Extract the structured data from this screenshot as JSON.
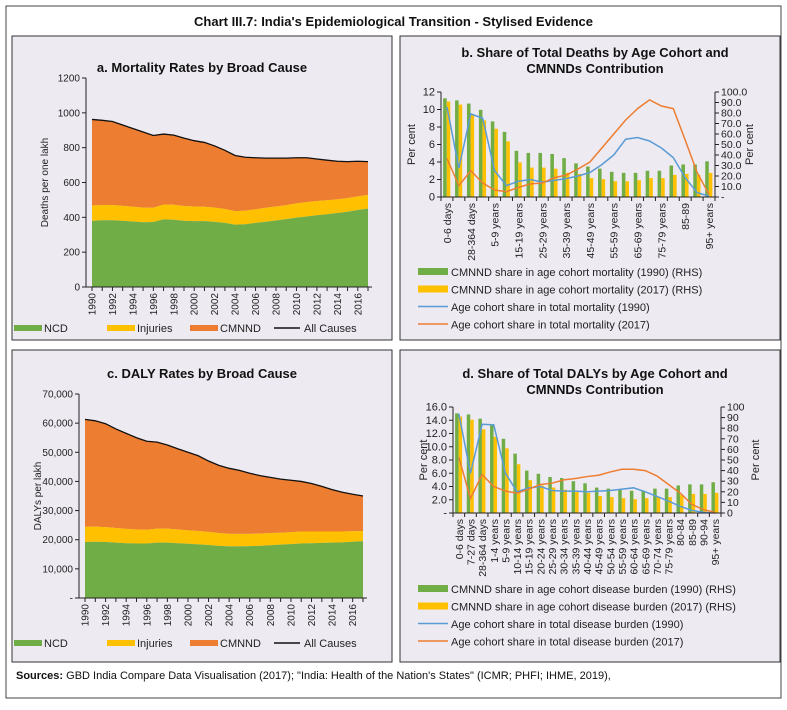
{
  "title": "Chart III.7: India's Epidemiological Transition - Stylised Evidence",
  "sources_label": "Sources:",
  "sources_text": "GBD India Compare Data Visualisation (2017); \"India: Health of the Nation's States\" (ICMR; PHFI; IHME, 2019),",
  "colors": {
    "ncd": "#70ad47",
    "injuries": "#ffc000",
    "cmnnd": "#ed7d31",
    "all": "#111111",
    "blue": "#5b9bd5",
    "panel_bg": "#edeaf1"
  },
  "chart_data": [
    {
      "type": "area",
      "title": "a. Mortality Rates by Broad Cause",
      "ylabel": "Deaths per one lakh",
      "ylim": [
        0,
        1200
      ],
      "yticks": [
        "0",
        "200",
        "400",
        "600",
        "800",
        "1000",
        "1200"
      ],
      "x": [
        1990,
        1991,
        1992,
        1993,
        1994,
        1995,
        1996,
        1997,
        1998,
        1999,
        2000,
        2001,
        2002,
        2003,
        2004,
        2005,
        2006,
        2007,
        2008,
        2009,
        2010,
        2011,
        2012,
        2013,
        2014,
        2015,
        2016,
        2017
      ],
      "xtick_labels": [
        "1990",
        "1992",
        "1994",
        "1996",
        "1998",
        "2000",
        "2002",
        "2004",
        "2006",
        "2008",
        "2010",
        "2012",
        "2014",
        "2016"
      ],
      "legend": [
        "NCD",
        "Injuries",
        "CMNND",
        "All Causes"
      ],
      "series": [
        {
          "name": "NCD",
          "values": [
            380,
            383,
            383,
            380,
            376,
            372,
            373,
            388,
            386,
            380,
            378,
            378,
            374,
            368,
            358,
            360,
            368,
            375,
            382,
            390,
            398,
            405,
            412,
            418,
            425,
            432,
            442,
            450
          ]
        },
        {
          "name": "Injuries",
          "values": [
            88,
            88,
            88,
            86,
            85,
            84,
            82,
            86,
            86,
            85,
            84,
            83,
            82,
            80,
            78,
            78,
            78,
            80,
            80,
            80,
            82,
            82,
            82,
            80,
            78,
            78,
            78,
            78
          ]
        },
        {
          "name": "All Causes",
          "values": [
            962,
            957,
            950,
            930,
            910,
            890,
            870,
            878,
            872,
            855,
            840,
            830,
            810,
            785,
            755,
            745,
            742,
            740,
            740,
            740,
            742,
            742,
            735,
            728,
            722,
            720,
            722,
            720
          ]
        }
      ]
    },
    {
      "type": "bar+line",
      "title": "b. Share of Total Deaths by Age Cohort and CMNNDs Contribution",
      "ylabel": "Per cent",
      "y2label": "Per cent",
      "ylim": [
        0,
        12
      ],
      "y2lim": [
        0,
        100
      ],
      "yticks": [
        "0",
        "2",
        "4",
        "6",
        "8",
        "10",
        "12"
      ],
      "y2ticks": [
        "-",
        "10.0",
        "20.0",
        "30.0",
        "40.0",
        "50.0",
        "60.0",
        "70.0",
        "80.0",
        "90.0",
        "100.0"
      ],
      "categories": [
        "0-6 days",
        "7-27 days",
        "28-364 days",
        "1-4 years",
        "5-9 years",
        "10-14 years",
        "15-19 years",
        "20-24 years",
        "25-29 years",
        "30-34 years",
        "35-39 years",
        "40-44 years",
        "45-49 years",
        "50-54 years",
        "55-59 years",
        "60-64 years",
        "65-69 years",
        "70-74 years",
        "75-79 years",
        "80-84",
        "85-89",
        "90-94",
        "95+ years"
      ],
      "shown_labels": [
        0,
        2,
        4,
        6,
        8,
        10,
        12,
        14,
        16,
        18,
        20,
        22
      ],
      "series": [
        {
          "name": "CMNND share in age cohort mortality (1990) (RHS)",
          "kind": "bar",
          "axis": "right",
          "values": [
            94,
            92,
            89,
            83,
            72,
            62,
            44,
            42,
            42,
            41,
            37,
            32,
            29,
            27,
            24,
            23,
            23,
            25,
            25,
            30,
            31,
            31,
            34
          ]
        },
        {
          "name": "CMNND share in age cohort mortality (2017) (RHS)",
          "kind": "bar",
          "axis": "right",
          "values": [
            91,
            88,
            79,
            73,
            65,
            53,
            33,
            28,
            28,
            27,
            23,
            22,
            18,
            17,
            15,
            15,
            16,
            18,
            18,
            21,
            22,
            21,
            23
          ]
        },
        {
          "name": "Age cohort share in total mortality (1990)",
          "kind": "line",
          "axis": "left",
          "values": [
            10.3,
            3.3,
            9.5,
            9.0,
            3.0,
            1.3,
            1.8,
            2.0,
            1.7,
            1.9,
            2.1,
            2.4,
            2.8,
            3.7,
            4.8,
            6.6,
            6.8,
            6.4,
            5.6,
            4.5,
            2.2,
            0.5,
            0.1
          ]
        },
        {
          "name": "Age cohort share in total mortality (2017)",
          "kind": "line",
          "axis": "left",
          "values": [
            4.4,
            1.3,
            3.0,
            1.6,
            0.8,
            0.6,
            1.1,
            1.5,
            1.6,
            2.2,
            2.5,
            3.2,
            4.0,
            5.6,
            7.2,
            8.8,
            10.1,
            11.1,
            10.4,
            10.1,
            6.5,
            2.8,
            0.3
          ]
        }
      ]
    },
    {
      "type": "area",
      "title": "c. DALY Rates by Broad Cause",
      "ylabel": "DALYs per lakh",
      "ylim": [
        0,
        70000
      ],
      "yticks": [
        "-",
        "10,000",
        "20,000",
        "30,000",
        "40,000",
        "50,000",
        "60,000",
        "70,000"
      ],
      "x": [
        1990,
        1991,
        1992,
        1993,
        1994,
        1995,
        1996,
        1997,
        1998,
        1999,
        2000,
        2001,
        2002,
        2003,
        2004,
        2005,
        2006,
        2007,
        2008,
        2009,
        2010,
        2011,
        2012,
        2013,
        2014,
        2015,
        2016,
        2017
      ],
      "xtick_labels": [
        "1990",
        "1992",
        "1994",
        "1996",
        "1998",
        "2000",
        "2002",
        "2004",
        "2006",
        "2008",
        "2010",
        "2012",
        "2014",
        "2016"
      ],
      "legend": [
        "NCD",
        "Injuries",
        "CMNND",
        "All Causes"
      ],
      "series": [
        {
          "name": "NCD",
          "values": [
            19200,
            19300,
            19200,
            19000,
            18800,
            18700,
            18700,
            19000,
            19000,
            18800,
            18600,
            18400,
            18200,
            17900,
            17700,
            17700,
            17800,
            17900,
            18100,
            18300,
            18500,
            18700,
            18800,
            18900,
            19000,
            19100,
            19300,
            19500
          ]
        },
        {
          "name": "Injuries",
          "values": [
            5200,
            5200,
            5100,
            5000,
            4900,
            4800,
            4700,
            4800,
            4800,
            4700,
            4600,
            4600,
            4500,
            4400,
            4300,
            4300,
            4200,
            4200,
            4200,
            4100,
            4100,
            4100,
            4000,
            3900,
            3800,
            3700,
            3600,
            3500
          ]
        },
        {
          "name": "All Causes",
          "values": [
            61300,
            60800,
            59800,
            58000,
            56500,
            55000,
            53800,
            53500,
            52500,
            51200,
            50000,
            48800,
            47000,
            45500,
            44500,
            43800,
            42800,
            42000,
            41400,
            40800,
            40400,
            40000,
            39300,
            38300,
            37200,
            36300,
            35600,
            35000
          ]
        }
      ]
    },
    {
      "type": "bar+line",
      "title": "d. Share of Total DALYs by Age Cohort and CMNNDs Contribution",
      "ylabel": "Per cent",
      "y2label": "Per cent",
      "ylim": [
        0,
        16
      ],
      "y2lim": [
        0,
        100
      ],
      "yticks": [
        "-",
        "2.0",
        "4.0",
        "6.0",
        "8.0",
        "10.0",
        "12.0",
        "14.0",
        "16.0"
      ],
      "y2ticks": [
        "0",
        "10",
        "20",
        "30",
        "40",
        "50",
        "60",
        "70",
        "80",
        "90",
        "100"
      ],
      "categories": [
        "0-6 days",
        "7-27 days",
        "28-364 days",
        "1-4 years",
        "5-9 years",
        "10-14 years",
        "15-19 years",
        "20-24 years",
        "25-29 years",
        "30-34 years",
        "35-39 years",
        "40-44 years",
        "45-49 years",
        "50-54 years",
        "55-59 years",
        "60-64 years",
        "65-69 years",
        "70-74 years",
        "75-79 years",
        "80-84",
        "85-89",
        "90-94",
        "95+ years"
      ],
      "shown_labels": [
        0,
        1,
        2,
        3,
        4,
        5,
        6,
        7,
        8,
        9,
        10,
        11,
        12,
        13,
        14,
        15,
        16,
        17,
        18,
        19,
        20,
        21,
        22
      ],
      "series": [
        {
          "name": "CMNND share in age cohort disease burden (1990) (RHS)",
          "kind": "bar",
          "axis": "right",
          "values": [
            94,
            93,
            89,
            83,
            70,
            56,
            40,
            37,
            34,
            33,
            30,
            28,
            24,
            23,
            22,
            21,
            21,
            23,
            23,
            26,
            27,
            27,
            29
          ]
        },
        {
          "name": "CMNND share in age cohort disease burden (2017) (RHS)",
          "kind": "bar",
          "axis": "right",
          "values": [
            91,
            88,
            79,
            72,
            61,
            46,
            31,
            26,
            24,
            22,
            20,
            19,
            16,
            15,
            14,
            13,
            14,
            15,
            15,
            17,
            18,
            18,
            19
          ]
        },
        {
          "name": "Age cohort share in total disease burden (1990)",
          "kind": "line",
          "axis": "left",
          "values": [
            15.0,
            6.0,
            13.4,
            13.3,
            6.0,
            3.2,
            3.8,
            4.0,
            3.4,
            3.3,
            3.3,
            3.2,
            3.3,
            3.4,
            3.6,
            3.8,
            3.2,
            2.5,
            1.8,
            1.0,
            0.4,
            0.1,
            0.0
          ]
        },
        {
          "name": "Age cohort share in total disease burden (2017)",
          "kind": "line",
          "axis": "left",
          "values": [
            8.4,
            2.2,
            5.8,
            4.0,
            3.3,
            3.0,
            3.6,
            4.3,
            4.5,
            5.0,
            5.2,
            5.5,
            5.7,
            6.2,
            6.6,
            6.6,
            6.4,
            5.6,
            4.3,
            3.0,
            1.3,
            0.5,
            0.1
          ]
        }
      ]
    }
  ]
}
